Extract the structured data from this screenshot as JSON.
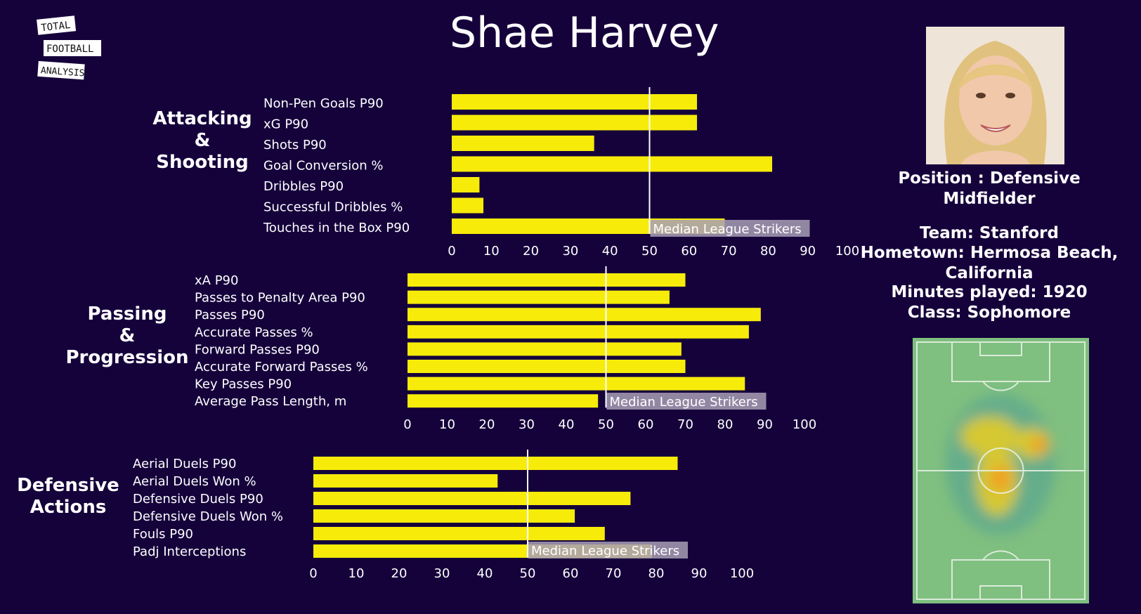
{
  "logo": {
    "line1": "TOTAL",
    "line2": "FOOTBALL",
    "line3": "ANALYSIS"
  },
  "title": "Shae Harvey",
  "player": {
    "photo_label": "player-headshot",
    "position": "Position : Defensive Midfielder",
    "team": "Team: Stanford",
    "hometown": "Hometown: Hermosa Beach, California",
    "minutes": "Minutes played: 1920",
    "class": "Class: Sophomore"
  },
  "colors": {
    "background": "#15023b",
    "bar": "#f7eb0a",
    "median_line": "#ffffff",
    "median_box": "#a89fb6",
    "pitch": "#7fbf7f"
  },
  "chart_data": [
    {
      "type": "bar",
      "orientation": "horizontal",
      "group_label": "Attacking & Shooting",
      "group_lines": [
        "Attacking",
        "&",
        "Shooting"
      ],
      "categories": [
        "Non-Pen Goals P90",
        "xG P90",
        "Shots P90",
        "Goal Conversion %",
        "Dribbles P90",
        "Successful Dribbles %",
        "Touches in the Box P90"
      ],
      "values": [
        62,
        62,
        36,
        81,
        7,
        8,
        69
      ],
      "xlim": [
        0,
        100
      ],
      "ticks": [
        0,
        10,
        20,
        30,
        40,
        50,
        60,
        70,
        80,
        90,
        100
      ],
      "median": 50,
      "median_label": "Median League Strikers"
    },
    {
      "type": "bar",
      "orientation": "horizontal",
      "group_label": "Passing & Progression",
      "group_lines": [
        "Passing",
        "&",
        "Progression"
      ],
      "categories": [
        "xA P90",
        "Passes to Penalty Area P90",
        "Passes P90",
        "Accurate Passes %",
        "Forward Passes P90",
        "Accurate Forward Passes %",
        "Key Passes P90",
        "Average Pass Length, m"
      ],
      "values": [
        70,
        66,
        89,
        86,
        69,
        70,
        85,
        48
      ],
      "xlim": [
        0,
        100
      ],
      "ticks": [
        0,
        10,
        20,
        30,
        40,
        50,
        60,
        70,
        80,
        90,
        100
      ],
      "median": 50,
      "median_label": "Median League Strikers"
    },
    {
      "type": "bar",
      "orientation": "horizontal",
      "group_label": "Defensive Actions",
      "group_lines": [
        "Defensive",
        "Actions"
      ],
      "categories": [
        "Aerial Duels P90",
        "Aerial Duels Won %",
        "Defensive Duels P90",
        "Defensive Duels Won %",
        "Fouls P90",
        "Padj Interceptions"
      ],
      "values": [
        85,
        43,
        74,
        61,
        68,
        79
      ],
      "xlim": [
        0,
        100
      ],
      "ticks": [
        0,
        10,
        20,
        30,
        40,
        50,
        60,
        70,
        80,
        90,
        100
      ],
      "median": 50,
      "median_label": "Median League Strikers"
    }
  ]
}
